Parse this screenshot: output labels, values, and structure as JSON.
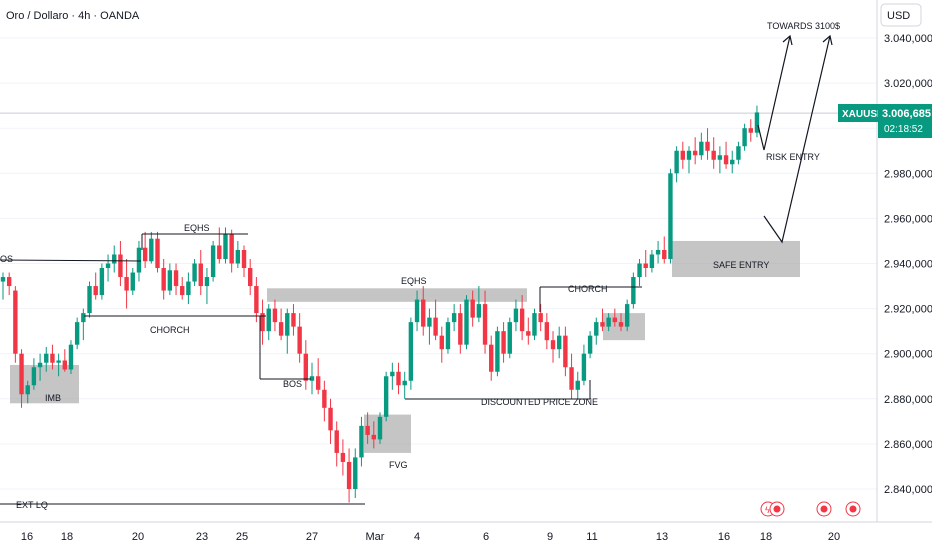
{
  "header": {
    "symbol_title": "Oro / Dollaro · 4h · OANDA",
    "currency": "USD"
  },
  "price_label": {
    "ticker": "XAUUSD",
    "price": "3.006,685",
    "countdown": "02:18:52",
    "color": "#089981"
  },
  "colors": {
    "up": "#089981",
    "down": "#f23645",
    "zone": "#9e9e9e",
    "line": "#131722"
  },
  "chart_data": {
    "type": "candlestick",
    "y_axis": {
      "ticks": [
        "3.040,000",
        "3.020,000",
        "3.000,000",
        "2.980,000",
        "2.960,000",
        "2.940,000",
        "2.920,000",
        "2.900,000",
        "2.880,000",
        "2.860,000",
        "2.840,000"
      ],
      "tick_values": [
        3040,
        3020,
        3000,
        2980,
        2960,
        2940,
        2920,
        2900,
        2880,
        2860,
        2840
      ],
      "range": [
        2828,
        3052
      ]
    },
    "x_axis": {
      "ticks": [
        "16",
        "18",
        "20",
        "23",
        "25",
        "27",
        "Mar",
        "4",
        "6",
        "9",
        "11",
        "13",
        "16",
        "18",
        "20"
      ]
    },
    "candles": [
      {
        "o": 2932,
        "h": 2936,
        "l": 2924,
        "c": 2934
      },
      {
        "o": 2934,
        "h": 2936,
        "l": 2926,
        "c": 2930
      },
      {
        "o": 2928,
        "h": 2930,
        "l": 2896,
        "c": 2900
      },
      {
        "o": 2900,
        "h": 2902,
        "l": 2876,
        "c": 2882
      },
      {
        "o": 2882,
        "h": 2888,
        "l": 2878,
        "c": 2886
      },
      {
        "o": 2886,
        "h": 2898,
        "l": 2884,
        "c": 2894
      },
      {
        "o": 2894,
        "h": 2900,
        "l": 2888,
        "c": 2896
      },
      {
        "o": 2896,
        "h": 2903,
        "l": 2892,
        "c": 2900
      },
      {
        "o": 2900,
        "h": 2904,
        "l": 2893,
        "c": 2896
      },
      {
        "o": 2896,
        "h": 2900,
        "l": 2890,
        "c": 2897
      },
      {
        "o": 2897,
        "h": 2902,
        "l": 2892,
        "c": 2893
      },
      {
        "o": 2893,
        "h": 2906,
        "l": 2891,
        "c": 2904
      },
      {
        "o": 2904,
        "h": 2916,
        "l": 2902,
        "c": 2914
      },
      {
        "o": 2914,
        "h": 2920,
        "l": 2906,
        "c": 2918
      },
      {
        "o": 2918,
        "h": 2932,
        "l": 2916,
        "c": 2930
      },
      {
        "o": 2930,
        "h": 2936,
        "l": 2924,
        "c": 2926
      },
      {
        "o": 2926,
        "h": 2940,
        "l": 2924,
        "c": 2938
      },
      {
        "o": 2938,
        "h": 2944,
        "l": 2932,
        "c": 2940
      },
      {
        "o": 2940,
        "h": 2948,
        "l": 2936,
        "c": 2944
      },
      {
        "o": 2944,
        "h": 2950,
        "l": 2930,
        "c": 2934
      },
      {
        "o": 2934,
        "h": 2942,
        "l": 2920,
        "c": 2928
      },
      {
        "o": 2928,
        "h": 2938,
        "l": 2926,
        "c": 2936
      },
      {
        "o": 2936,
        "h": 2950,
        "l": 2932,
        "c": 2947
      },
      {
        "o": 2947,
        "h": 2954,
        "l": 2938,
        "c": 2941
      },
      {
        "o": 2941,
        "h": 2954,
        "l": 2940,
        "c": 2951
      },
      {
        "o": 2951,
        "h": 2954,
        "l": 2936,
        "c": 2938
      },
      {
        "o": 2938,
        "h": 2942,
        "l": 2924,
        "c": 2928
      },
      {
        "o": 2928,
        "h": 2940,
        "l": 2926,
        "c": 2937
      },
      {
        "o": 2937,
        "h": 2940,
        "l": 2926,
        "c": 2930
      },
      {
        "o": 2930,
        "h": 2934,
        "l": 2924,
        "c": 2926
      },
      {
        "o": 2926,
        "h": 2936,
        "l": 2922,
        "c": 2932
      },
      {
        "o": 2932,
        "h": 2942,
        "l": 2930,
        "c": 2940
      },
      {
        "o": 2940,
        "h": 2946,
        "l": 2926,
        "c": 2930
      },
      {
        "o": 2930,
        "h": 2938,
        "l": 2922,
        "c": 2934
      },
      {
        "o": 2934,
        "h": 2950,
        "l": 2932,
        "c": 2948
      },
      {
        "o": 2948,
        "h": 2956,
        "l": 2940,
        "c": 2942
      },
      {
        "o": 2942,
        "h": 2956,
        "l": 2940,
        "c": 2953
      },
      {
        "o": 2953,
        "h": 2955,
        "l": 2936,
        "c": 2940
      },
      {
        "o": 2940,
        "h": 2950,
        "l": 2938,
        "c": 2946
      },
      {
        "o": 2946,
        "h": 2948,
        "l": 2934,
        "c": 2938
      },
      {
        "o": 2938,
        "h": 2942,
        "l": 2926,
        "c": 2930
      },
      {
        "o": 2930,
        "h": 2934,
        "l": 2914,
        "c": 2918
      },
      {
        "o": 2918,
        "h": 2924,
        "l": 2904,
        "c": 2910
      },
      {
        "o": 2910,
        "h": 2922,
        "l": 2906,
        "c": 2920
      },
      {
        "o": 2920,
        "h": 2924,
        "l": 2910,
        "c": 2914
      },
      {
        "o": 2914,
        "h": 2920,
        "l": 2906,
        "c": 2908
      },
      {
        "o": 2908,
        "h": 2920,
        "l": 2900,
        "c": 2918
      },
      {
        "o": 2918,
        "h": 2922,
        "l": 2908,
        "c": 2912
      },
      {
        "o": 2912,
        "h": 2918,
        "l": 2896,
        "c": 2900
      },
      {
        "o": 2900,
        "h": 2906,
        "l": 2884,
        "c": 2888
      },
      {
        "o": 2888,
        "h": 2896,
        "l": 2882,
        "c": 2890
      },
      {
        "o": 2890,
        "h": 2898,
        "l": 2882,
        "c": 2884
      },
      {
        "o": 2884,
        "h": 2888,
        "l": 2870,
        "c": 2876
      },
      {
        "o": 2876,
        "h": 2880,
        "l": 2860,
        "c": 2866
      },
      {
        "o": 2866,
        "h": 2870,
        "l": 2850,
        "c": 2856
      },
      {
        "o": 2856,
        "h": 2862,
        "l": 2846,
        "c": 2852
      },
      {
        "o": 2852,
        "h": 2858,
        "l": 2834,
        "c": 2840
      },
      {
        "o": 2840,
        "h": 2858,
        "l": 2836,
        "c": 2854
      },
      {
        "o": 2854,
        "h": 2872,
        "l": 2850,
        "c": 2868
      },
      {
        "o": 2868,
        "h": 2874,
        "l": 2860,
        "c": 2864
      },
      {
        "o": 2864,
        "h": 2870,
        "l": 2858,
        "c": 2862
      },
      {
        "o": 2862,
        "h": 2874,
        "l": 2860,
        "c": 2872
      },
      {
        "o": 2872,
        "h": 2892,
        "l": 2870,
        "c": 2890
      },
      {
        "o": 2890,
        "h": 2896,
        "l": 2884,
        "c": 2892
      },
      {
        "o": 2892,
        "h": 2896,
        "l": 2882,
        "c": 2886
      },
      {
        "o": 2886,
        "h": 2892,
        "l": 2880,
        "c": 2888
      },
      {
        "o": 2888,
        "h": 2916,
        "l": 2884,
        "c": 2914
      },
      {
        "o": 2914,
        "h": 2928,
        "l": 2910,
        "c": 2924
      },
      {
        "o": 2924,
        "h": 2930,
        "l": 2908,
        "c": 2912
      },
      {
        "o": 2912,
        "h": 2920,
        "l": 2904,
        "c": 2916
      },
      {
        "o": 2916,
        "h": 2924,
        "l": 2906,
        "c": 2908
      },
      {
        "o": 2908,
        "h": 2912,
        "l": 2896,
        "c": 2902
      },
      {
        "o": 2902,
        "h": 2916,
        "l": 2900,
        "c": 2914
      },
      {
        "o": 2914,
        "h": 2922,
        "l": 2910,
        "c": 2918
      },
      {
        "o": 2918,
        "h": 2922,
        "l": 2900,
        "c": 2904
      },
      {
        "o": 2904,
        "h": 2926,
        "l": 2902,
        "c": 2924
      },
      {
        "o": 2924,
        "h": 2928,
        "l": 2912,
        "c": 2916
      },
      {
        "o": 2916,
        "h": 2930,
        "l": 2914,
        "c": 2922
      },
      {
        "o": 2922,
        "h": 2928,
        "l": 2900,
        "c": 2904
      },
      {
        "o": 2904,
        "h": 2908,
        "l": 2888,
        "c": 2892
      },
      {
        "o": 2892,
        "h": 2912,
        "l": 2890,
        "c": 2910
      },
      {
        "o": 2910,
        "h": 2914,
        "l": 2896,
        "c": 2900
      },
      {
        "o": 2900,
        "h": 2916,
        "l": 2898,
        "c": 2914
      },
      {
        "o": 2914,
        "h": 2924,
        "l": 2910,
        "c": 2920
      },
      {
        "o": 2920,
        "h": 2926,
        "l": 2906,
        "c": 2910
      },
      {
        "o": 2910,
        "h": 2916,
        "l": 2904,
        "c": 2908
      },
      {
        "o": 2908,
        "h": 2920,
        "l": 2906,
        "c": 2918
      },
      {
        "o": 2918,
        "h": 2922,
        "l": 2910,
        "c": 2914
      },
      {
        "o": 2914,
        "h": 2918,
        "l": 2902,
        "c": 2906
      },
      {
        "o": 2906,
        "h": 2910,
        "l": 2896,
        "c": 2902
      },
      {
        "o": 2902,
        "h": 2912,
        "l": 2898,
        "c": 2908
      },
      {
        "o": 2908,
        "h": 2912,
        "l": 2890,
        "c": 2894
      },
      {
        "o": 2894,
        "h": 2900,
        "l": 2880,
        "c": 2884
      },
      {
        "o": 2884,
        "h": 2892,
        "l": 2880,
        "c": 2888
      },
      {
        "o": 2888,
        "h": 2904,
        "l": 2886,
        "c": 2900
      },
      {
        "o": 2900,
        "h": 2910,
        "l": 2898,
        "c": 2908
      },
      {
        "o": 2908,
        "h": 2916,
        "l": 2904,
        "c": 2914
      },
      {
        "o": 2914,
        "h": 2920,
        "l": 2910,
        "c": 2912
      },
      {
        "o": 2912,
        "h": 2918,
        "l": 2910,
        "c": 2916
      },
      {
        "o": 2916,
        "h": 2920,
        "l": 2912,
        "c": 2914
      },
      {
        "o": 2914,
        "h": 2918,
        "l": 2910,
        "c": 2912
      },
      {
        "o": 2912,
        "h": 2924,
        "l": 2910,
        "c": 2922
      },
      {
        "o": 2922,
        "h": 2936,
        "l": 2920,
        "c": 2934
      },
      {
        "o": 2934,
        "h": 2942,
        "l": 2930,
        "c": 2940
      },
      {
        "o": 2940,
        "h": 2946,
        "l": 2934,
        "c": 2938
      },
      {
        "o": 2938,
        "h": 2946,
        "l": 2936,
        "c": 2944
      },
      {
        "o": 2944,
        "h": 2950,
        "l": 2940,
        "c": 2946
      },
      {
        "o": 2946,
        "h": 2952,
        "l": 2940,
        "c": 2942
      },
      {
        "o": 2942,
        "h": 2982,
        "l": 2940,
        "c": 2980
      },
      {
        "o": 2980,
        "h": 2992,
        "l": 2976,
        "c": 2990
      },
      {
        "o": 2990,
        "h": 2994,
        "l": 2982,
        "c": 2986
      },
      {
        "o": 2986,
        "h": 2992,
        "l": 2980,
        "c": 2990
      },
      {
        "o": 2990,
        "h": 2996,
        "l": 2984,
        "c": 2988
      },
      {
        "o": 2988,
        "h": 2998,
        "l": 2986,
        "c": 2994
      },
      {
        "o": 2994,
        "h": 3000,
        "l": 2986,
        "c": 2990
      },
      {
        "o": 2990,
        "h": 2996,
        "l": 2982,
        "c": 2986
      },
      {
        "o": 2986,
        "h": 2992,
        "l": 2980,
        "c": 2988
      },
      {
        "o": 2988,
        "h": 2994,
        "l": 2982,
        "c": 2984
      },
      {
        "o": 2984,
        "h": 2990,
        "l": 2980,
        "c": 2986
      },
      {
        "o": 2986,
        "h": 2994,
        "l": 2984,
        "c": 2992
      },
      {
        "o": 2992,
        "h": 3002,
        "l": 2990,
        "c": 3000
      },
      {
        "o": 3000,
        "h": 3004,
        "l": 2994,
        "c": 2998
      },
      {
        "o": 2998,
        "h": 3010,
        "l": 2996,
        "c": 3007
      }
    ],
    "zones": [
      {
        "label": "IMB",
        "y_from": 2878,
        "y_to": 2895
      },
      {
        "label": "EQHS",
        "y_from": 2923,
        "y_to": 2929
      },
      {
        "label": "FVG",
        "y_from": 2856,
        "y_to": 2873
      },
      {
        "label": "",
        "y_from": 2906,
        "y_to": 2918
      },
      {
        "label": "SAFE ENTRY",
        "y_from": 2934,
        "y_to": 2950
      }
    ],
    "annotations": [
      {
        "label": "OS",
        "level": 2941
      },
      {
        "label": "EQHS",
        "level": 2954
      },
      {
        "label": "CHORCH",
        "level": 2918
      },
      {
        "label": "BOS",
        "level": 2888
      },
      {
        "label": "CHORCH",
        "level": 2929
      },
      {
        "label": "DISCOUNTED PRICE ZONE",
        "level": 2879
      },
      {
        "label": "EXT LQ",
        "level": 2834
      },
      {
        "label": "RISK ENTRY"
      },
      {
        "label": "TOWARDS 3100$"
      }
    ],
    "current_price": 3006.685
  }
}
